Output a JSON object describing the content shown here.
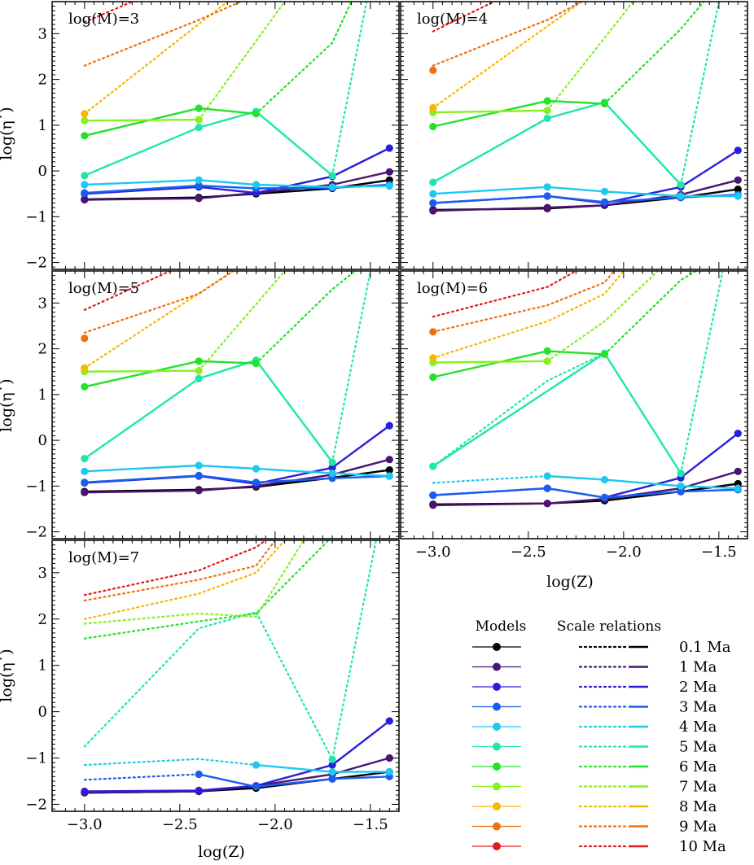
{
  "figure": {
    "xlabel": "log(Z)",
    "ylabel": "log(η˙)",
    "x_ticks": [
      "−3.0",
      "−2.5",
      "−2.0",
      "−1.5"
    ],
    "y_ticks": [
      "−2",
      "−1",
      "0",
      "1",
      "2",
      "3"
    ],
    "xlim": [
      -3.17,
      -1.35
    ],
    "ylim": [
      -2.15,
      3.7
    ]
  },
  "legend": {
    "models_header": "Models",
    "relations_header": "Scale relations",
    "labels": [
      "0.1 Ma",
      "1 Ma",
      "2 Ma",
      "3 Ma",
      "4 Ma",
      "5 Ma",
      "6 Ma",
      "7 Ma",
      "8 Ma",
      "9 Ma",
      "10 Ma"
    ],
    "colors": [
      "#000000",
      "#4a1470",
      "#2a1fd9",
      "#1a5ef0",
      "#1ec8f0",
      "#1de8a8",
      "#22e22a",
      "#88f020",
      "#f5b800",
      "#f07010",
      "#e21a1a"
    ]
  },
  "chart_data": [
    {
      "type": "line",
      "panel_label": "log(M)=3",
      "models": [
        {
          "age": "0.1 Ma",
          "x": [
            -3.0,
            -2.4,
            -2.1,
            -1.7,
            -1.4
          ],
          "y": [
            -0.62,
            -0.58,
            -0.5,
            -0.38,
            -0.2
          ]
        },
        {
          "age": "1 Ma",
          "x": [
            -3.0,
            -2.4,
            -2.1,
            -1.7,
            -1.4
          ],
          "y": [
            -0.63,
            -0.6,
            -0.48,
            -0.3,
            -0.02
          ]
        },
        {
          "age": "2 Ma",
          "x": [
            -3.0,
            -2.4,
            -2.1,
            -1.7,
            -1.4
          ],
          "y": [
            -0.5,
            -0.35,
            -0.48,
            -0.12,
            0.5
          ]
        },
        {
          "age": "3 Ma",
          "x": [
            -3.0,
            -2.4,
            -2.1,
            -1.7,
            -1.4
          ],
          "y": [
            -0.48,
            -0.32,
            -0.38,
            -0.37,
            -0.3
          ]
        },
        {
          "age": "4 Ma",
          "x": [
            -3.0,
            -2.4,
            -2.1,
            -1.7,
            -1.4
          ],
          "y": [
            -0.3,
            -0.2,
            -0.3,
            -0.35,
            -0.33
          ]
        },
        {
          "age": "5 Ma",
          "x": [
            -3.0,
            -2.4,
            -2.1,
            -1.7
          ],
          "y": [
            -0.1,
            0.95,
            1.3,
            -0.1
          ]
        },
        {
          "age": "6 Ma",
          "x": [
            -3.0,
            -2.4,
            -2.1
          ],
          "y": [
            0.77,
            1.37,
            1.25
          ]
        },
        {
          "age": "7 Ma",
          "x": [
            -3.0,
            -2.4
          ],
          "y": [
            1.1,
            1.12
          ]
        },
        {
          "age": "8 Ma",
          "x": [
            -3.0
          ],
          "y": [
            1.25
          ]
        }
      ],
      "relations": [
        {
          "age": "5 Ma",
          "x": [
            -1.7,
            -1.52
          ],
          "y": [
            -0.1,
            3.7
          ]
        },
        {
          "age": "6 Ma",
          "x": [
            -2.1,
            -1.7,
            -1.6
          ],
          "y": [
            1.25,
            2.8,
            3.7
          ]
        },
        {
          "age": "7 Ma",
          "x": [
            -2.4,
            -1.95
          ],
          "y": [
            1.12,
            3.7
          ]
        },
        {
          "age": "8 Ma",
          "x": [
            -3.0,
            -2.25
          ],
          "y": [
            1.25,
            3.7
          ]
        },
        {
          "age": "9 Ma",
          "x": [
            -3.0,
            -2.4,
            -2.18
          ],
          "y": [
            2.3,
            3.3,
            3.7
          ]
        },
        {
          "age": "10 Ma",
          "x": [
            -3.0,
            -2.75
          ],
          "y": [
            3.25,
            3.7
          ]
        }
      ]
    },
    {
      "type": "line",
      "panel_label": "log(M)=4",
      "models": [
        {
          "age": "0.1 Ma",
          "x": [
            -3.0,
            -2.4,
            -2.1,
            -1.7,
            -1.4
          ],
          "y": [
            -0.85,
            -0.82,
            -0.75,
            -0.58,
            -0.4
          ]
        },
        {
          "age": "1 Ma",
          "x": [
            -3.0,
            -2.4,
            -2.1,
            -1.7,
            -1.4
          ],
          "y": [
            -0.87,
            -0.8,
            -0.75,
            -0.52,
            -0.2
          ]
        },
        {
          "age": "2 Ma",
          "x": [
            -3.0,
            -2.4,
            -2.1,
            -1.7,
            -1.4
          ],
          "y": [
            -0.7,
            -0.55,
            -0.7,
            -0.35,
            0.45
          ]
        },
        {
          "age": "3 Ma",
          "x": [
            -3.0,
            -2.4,
            -2.1,
            -1.7,
            -1.4
          ],
          "y": [
            -0.7,
            -0.55,
            -0.68,
            -0.58,
            -0.52
          ]
        },
        {
          "age": "4 Ma",
          "x": [
            -3.0,
            -2.4,
            -2.1,
            -1.7,
            -1.4
          ],
          "y": [
            -0.5,
            -0.35,
            -0.45,
            -0.55,
            -0.55
          ]
        },
        {
          "age": "5 Ma",
          "x": [
            -3.0,
            -2.4,
            -2.1,
            -1.7
          ],
          "y": [
            -0.25,
            1.15,
            1.5,
            -0.3
          ]
        },
        {
          "age": "6 Ma",
          "x": [
            -3.0,
            -2.4,
            -2.1
          ],
          "y": [
            0.97,
            1.53,
            1.47
          ]
        },
        {
          "age": "7 Ma",
          "x": [
            -3.0,
            -2.4
          ],
          "y": [
            1.28,
            1.32
          ]
        },
        {
          "age": "8 Ma",
          "x": [
            -3.0
          ],
          "y": [
            1.38
          ]
        },
        {
          "age": "9 Ma",
          "x": [
            -3.0
          ],
          "y": [
            2.2
          ]
        }
      ],
      "relations": [
        {
          "age": "5 Ma",
          "x": [
            -1.7,
            -1.5
          ],
          "y": [
            -0.3,
            3.7
          ]
        },
        {
          "age": "6 Ma",
          "x": [
            -2.1,
            -1.7,
            -1.58
          ],
          "y": [
            1.47,
            3.1,
            3.7
          ]
        },
        {
          "age": "7 Ma",
          "x": [
            -2.4,
            -1.95
          ],
          "y": [
            1.32,
            3.7
          ]
        },
        {
          "age": "8 Ma",
          "x": [
            -3.0,
            -2.22
          ],
          "y": [
            1.38,
            3.7
          ]
        },
        {
          "age": "9 Ma",
          "x": [
            -3.0,
            -2.4,
            -2.22
          ],
          "y": [
            2.3,
            3.3,
            3.7
          ]
        },
        {
          "age": "10 Ma",
          "x": [
            -3.0,
            -2.68
          ],
          "y": [
            3.05,
            3.7
          ]
        }
      ]
    },
    {
      "type": "line",
      "panel_label": "log(M)=5",
      "models": [
        {
          "age": "0.1 Ma",
          "x": [
            -3.0,
            -2.4,
            -2.1,
            -1.7,
            -1.4
          ],
          "y": [
            -1.12,
            -1.08,
            -1.02,
            -0.82,
            -0.65
          ]
        },
        {
          "age": "1 Ma",
          "x": [
            -3.0,
            -2.4,
            -2.1,
            -1.7,
            -1.4
          ],
          "y": [
            -1.14,
            -1.1,
            -1.0,
            -0.75,
            -0.42
          ]
        },
        {
          "age": "2 Ma",
          "x": [
            -3.0,
            -2.4,
            -2.1,
            -1.7,
            -1.4
          ],
          "y": [
            -0.93,
            -0.78,
            -0.95,
            -0.6,
            0.32
          ]
        },
        {
          "age": "3 Ma",
          "x": [
            -3.0,
            -2.4,
            -2.1,
            -1.7,
            -1.4
          ],
          "y": [
            -0.92,
            -0.77,
            -0.92,
            -0.83,
            -0.78
          ]
        },
        {
          "age": "4 Ma",
          "x": [
            -3.0,
            -2.4,
            -2.1,
            -1.7,
            -1.4
          ],
          "y": [
            -0.68,
            -0.55,
            -0.62,
            -0.72,
            -0.78
          ]
        },
        {
          "age": "5 Ma",
          "x": [
            -3.0,
            -2.4,
            -2.1,
            -1.7
          ],
          "y": [
            -0.4,
            1.35,
            1.75,
            -0.48
          ]
        },
        {
          "age": "6 Ma",
          "x": [
            -3.0,
            -2.4,
            -2.1
          ],
          "y": [
            1.17,
            1.73,
            1.68
          ]
        },
        {
          "age": "7 Ma",
          "x": [
            -3.0,
            -2.4
          ],
          "y": [
            1.5,
            1.52
          ]
        },
        {
          "age": "8 Ma",
          "x": [
            -3.0
          ],
          "y": [
            1.58
          ]
        },
        {
          "age": "9 Ma",
          "x": [
            -3.0
          ],
          "y": [
            2.23
          ]
        }
      ],
      "relations": [
        {
          "age": "5 Ma",
          "x": [
            -1.7,
            -1.5
          ],
          "y": [
            -0.48,
            3.7
          ]
        },
        {
          "age": "6 Ma",
          "x": [
            -2.1,
            -1.7,
            -1.58
          ],
          "y": [
            1.68,
            3.3,
            3.7
          ]
        },
        {
          "age": "7 Ma",
          "x": [
            -2.4,
            -1.95
          ],
          "y": [
            1.52,
            3.7
          ]
        },
        {
          "age": "8 Ma",
          "x": [
            -3.0,
            -2.22
          ],
          "y": [
            1.58,
            3.7
          ]
        },
        {
          "age": "9 Ma",
          "x": [
            -3.0,
            -2.4,
            -2.22
          ],
          "y": [
            2.35,
            3.2,
            3.7
          ]
        },
        {
          "age": "10 Ma",
          "x": [
            -3.0,
            -2.55
          ],
          "y": [
            2.85,
            3.7
          ]
        }
      ]
    },
    {
      "type": "line",
      "panel_label": "log(M)=6",
      "models": [
        {
          "age": "0.1 Ma",
          "x": [
            -3.0,
            -2.4,
            -2.1,
            -1.7,
            -1.4
          ],
          "y": [
            -1.4,
            -1.38,
            -1.32,
            -1.12,
            -0.95
          ]
        },
        {
          "age": "1 Ma",
          "x": [
            -3.0,
            -2.4,
            -2.1,
            -1.7,
            -1.4
          ],
          "y": [
            -1.42,
            -1.38,
            -1.28,
            -1.05,
            -0.68
          ]
        },
        {
          "age": "2 Ma",
          "x": [
            -3.0,
            -2.4,
            -2.1,
            -1.7,
            -1.4
          ],
          "y": [
            -1.2,
            -1.05,
            -1.25,
            -0.82,
            0.15
          ]
        },
        {
          "age": "3 Ma",
          "x": [
            -3.0,
            -2.4,
            -2.1,
            -1.7,
            -1.4
          ],
          "y": [
            -1.2,
            -1.05,
            -1.25,
            -1.12,
            -1.08
          ]
        },
        {
          "age": "4 Ma",
          "x": [
            -2.4,
            -2.1,
            -1.7,
            -1.4
          ],
          "y": [
            -0.78,
            -0.86,
            -1.0,
            -1.05
          ]
        },
        {
          "age": "5 Ma",
          "x": [
            -3.0,
            -2.1,
            -1.7
          ],
          "y": [
            -0.57,
            1.9,
            -0.72
          ]
        },
        {
          "age": "6 Ma",
          "x": [
            -3.0,
            -2.4,
            -2.1
          ],
          "y": [
            1.38,
            1.95,
            1.88
          ]
        },
        {
          "age": "7 Ma",
          "x": [
            -3.0,
            -2.4
          ],
          "y": [
            1.7,
            1.73
          ]
        },
        {
          "age": "8 Ma",
          "x": [
            -3.0
          ],
          "y": [
            1.8
          ]
        },
        {
          "age": "9 Ma",
          "x": [
            -3.0
          ],
          "y": [
            2.37
          ]
        }
      ],
      "relations": [
        {
          "age": "4 Ma",
          "x": [
            -3.0,
            -2.4
          ],
          "y": [
            -0.93,
            -0.78
          ]
        },
        {
          "age": "5 Ma",
          "x": [
            -3.0,
            -2.4,
            -2.1
          ],
          "y": [
            -0.57,
            1.3,
            1.9
          ]
        },
        {
          "age": "5 Ma",
          "x": [
            -1.7,
            -1.48
          ],
          "y": [
            -0.72,
            3.7
          ]
        },
        {
          "age": "6 Ma",
          "x": [
            -2.1,
            -1.7,
            -1.62
          ],
          "y": [
            1.88,
            3.5,
            3.7
          ]
        },
        {
          "age": "7 Ma",
          "x": [
            -2.4,
            -2.1,
            -1.82
          ],
          "y": [
            1.73,
            2.6,
            3.7
          ]
        },
        {
          "age": "8 Ma",
          "x": [
            -3.0,
            -2.4,
            -2.1,
            -2.0
          ],
          "y": [
            1.8,
            2.6,
            3.2,
            3.7
          ]
        },
        {
          "age": "9 Ma",
          "x": [
            -3.0,
            -2.4,
            -2.1,
            -2.05
          ],
          "y": [
            2.37,
            2.95,
            3.45,
            3.7
          ]
        },
        {
          "age": "10 Ma",
          "x": [
            -3.0,
            -2.4,
            -2.25
          ],
          "y": [
            2.7,
            3.35,
            3.7
          ]
        }
      ]
    },
    {
      "type": "line",
      "panel_label": "log(M)=7",
      "models": [
        {
          "age": "0.1 Ma",
          "x": [
            -3.0,
            -2.4,
            -2.1,
            -1.7,
            -1.4
          ],
          "y": [
            -1.75,
            -1.72,
            -1.65,
            -1.45,
            -1.3
          ]
        },
        {
          "age": "1 Ma",
          "x": [
            -3.0,
            -2.4,
            -2.1,
            -1.7,
            -1.4
          ],
          "y": [
            -1.75,
            -1.72,
            -1.6,
            -1.35,
            -1.0
          ]
        },
        {
          "age": "2 Ma",
          "x": [
            -3.0,
            -2.4,
            -2.1,
            -1.7,
            -1.4
          ],
          "y": [
            -1.72,
            -1.7,
            -1.6,
            -1.15,
            -0.2
          ]
        },
        {
          "age": "3 Ma",
          "x": [
            -2.4,
            -2.1,
            -1.7,
            -1.4
          ],
          "y": [
            -1.35,
            -1.62,
            -1.45,
            -1.4
          ]
        },
        {
          "age": "4 Ma",
          "x": [
            -2.1,
            -1.7,
            -1.4
          ],
          "y": [
            -1.15,
            -1.3,
            -1.3
          ]
        },
        {
          "age": "5 Ma",
          "x": [
            -1.7
          ],
          "y": [
            -1.03
          ]
        }
      ],
      "relations": [
        {
          "age": "3 Ma",
          "x": [
            -3.0,
            -2.4
          ],
          "y": [
            -1.47,
            -1.35
          ]
        },
        {
          "age": "4 Ma",
          "x": [
            -3.0,
            -2.4,
            -2.1
          ],
          "y": [
            -1.15,
            -1.02,
            -1.15
          ]
        },
        {
          "age": "5 Ma",
          "x": [
            -3.0,
            -2.4,
            -2.1,
            -1.7,
            -1.47
          ],
          "y": [
            -0.75,
            1.8,
            2.15,
            -1.03,
            3.7
          ]
        },
        {
          "age": "6 Ma",
          "x": [
            -3.0,
            -2.4,
            -2.1,
            -1.72
          ],
          "y": [
            1.58,
            1.95,
            2.12,
            3.7
          ]
        },
        {
          "age": "7 Ma",
          "x": [
            -3.0,
            -2.4,
            -2.1,
            -1.85
          ],
          "y": [
            1.9,
            2.12,
            2.05,
            3.7
          ]
        },
        {
          "age": "8 Ma",
          "x": [
            -3.0,
            -2.4,
            -2.1,
            -1.95
          ],
          "y": [
            2.0,
            2.55,
            3.0,
            3.7
          ]
        },
        {
          "age": "9 Ma",
          "x": [
            -3.0,
            -2.4,
            -2.1,
            -2.0
          ],
          "y": [
            2.4,
            2.85,
            3.15,
            3.7
          ]
        },
        {
          "age": "10 Ma",
          "x": [
            -3.0,
            -2.4,
            -2.1,
            -2.05
          ],
          "y": [
            2.52,
            3.05,
            3.55,
            3.7
          ]
        }
      ]
    }
  ]
}
